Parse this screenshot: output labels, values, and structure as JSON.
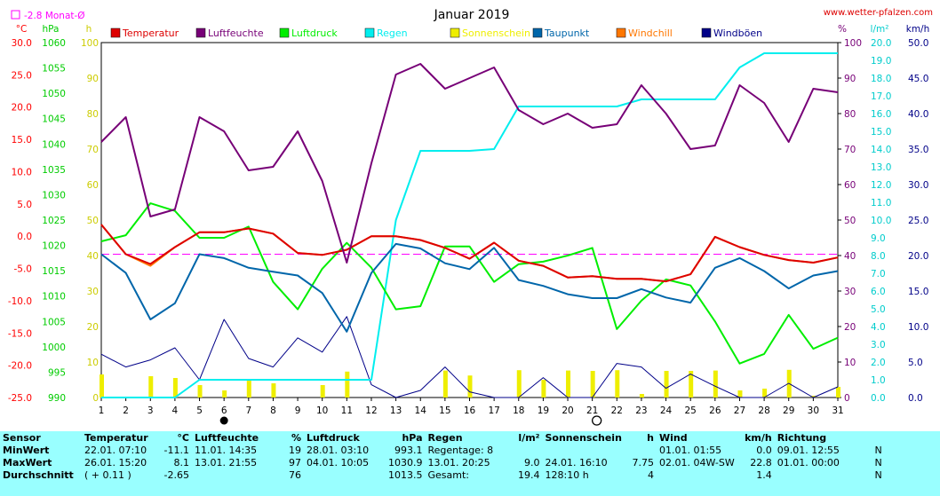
{
  "header": {
    "title": "Januar 2019",
    "url": "www.wetter-pfalzen.com",
    "month_avg_label": "-2.8 Monat-Ø",
    "units": {
      "temp": "°C",
      "pressure": "hPa",
      "sun": "h",
      "humidity": "%",
      "rain": "l/m²",
      "wind": "km/h"
    }
  },
  "colors": {
    "temperature": "#dd0000",
    "humidity": "#770077",
    "pressure": "#00ee00",
    "rain": "#00eeee",
    "sun": "#eeee00",
    "dewpoint": "#0066aa",
    "windchill": "#ff7700",
    "gusts": "#000088",
    "temp_axis": "#ff0000",
    "pressure_axis": "#00cc00",
    "sun_axis": "#cccc00",
    "hum_axis": "#770077",
    "rain_axis": "#00cccc",
    "wind_axis": "#000088",
    "avg_line": "#ff00ff"
  },
  "chart_data": {
    "type": "line",
    "title": "Januar 2019",
    "legend": [
      "Temperatur",
      "Luftfeuchte",
      "Luftdruck",
      "Regen",
      "Sonnenschein",
      "Taupunkt",
      "Windchill",
      "Windböen"
    ],
    "x": [
      1,
      2,
      3,
      4,
      5,
      6,
      7,
      8,
      9,
      10,
      11,
      12,
      13,
      14,
      15,
      16,
      17,
      18,
      19,
      20,
      21,
      22,
      23,
      24,
      25,
      26,
      27,
      28,
      29,
      30,
      31
    ],
    "axes": {
      "temp": {
        "min": -25,
        "max": 30,
        "ticks": [
          "30.0",
          "25.0",
          "20.0",
          "15.0",
          "10.0",
          "5.0",
          "0.0",
          "-5.0",
          "-10.0",
          "-15.0",
          "-20.0",
          "-25.0"
        ]
      },
      "pressure": {
        "min": 990,
        "max": 1060,
        "ticks": [
          "1060",
          "1055",
          "1050",
          "1045",
          "1040",
          "1035",
          "1030",
          "1025",
          "1020",
          "1015",
          "1010",
          "1005",
          "1000",
          "995",
          "990"
        ]
      },
      "sun": {
        "min": 0,
        "max": 100,
        "ticks": [
          "100",
          "90",
          "80",
          "70",
          "60",
          "50",
          "40",
          "30",
          "20",
          "10",
          "0"
        ]
      },
      "humidity": {
        "min": 0,
        "max": 100,
        "ticks": [
          "100",
          "90",
          "80",
          "70",
          "60",
          "50",
          "40",
          "30",
          "20",
          "10",
          "0"
        ]
      },
      "rain": {
        "min": 0,
        "max": 20,
        "ticks": [
          "20.0",
          "19.0",
          "18.0",
          "17.0",
          "16.0",
          "15.0",
          "14.0",
          "13.0",
          "12.0",
          "11.0",
          "10.0",
          "9.0",
          "8.0",
          "7.0",
          "6.0",
          "5.0",
          "4.0",
          "3.0",
          "2.0",
          "1.0",
          "0.0"
        ]
      },
      "wind": {
        "min": 0,
        "max": 50,
        "ticks": [
          "50.0",
          "45.0",
          "40.0",
          "35.0",
          "30.0",
          "25.0",
          "20.0",
          "15.0",
          "10.0",
          "5.0",
          "0.0"
        ]
      }
    },
    "series": [
      {
        "name": "Temperatur",
        "axis": "temp",
        "values": [
          1.8,
          -2.8,
          -4.3,
          -1.7,
          0.6,
          0.6,
          1.2,
          0.4,
          -2.6,
          -2.9,
          -2.1,
          0.0,
          0.0,
          -0.6,
          -1.8,
          -3.5,
          -1.0,
          -3.8,
          -4.6,
          -6.4,
          -6.2,
          -6.6,
          -6.6,
          -7.0,
          -5.9,
          -0.1,
          -1.7,
          -2.9,
          -3.7,
          -4.1,
          -3.3
        ]
      },
      {
        "name": "Luftfeuchte",
        "axis": "humidity",
        "values": [
          72,
          79,
          51,
          53,
          79,
          75,
          64,
          65,
          75,
          61,
          38,
          66,
          91,
          94,
          87,
          90,
          93,
          81,
          77,
          80,
          76,
          77,
          88,
          80,
          70,
          71,
          88,
          83,
          72,
          87,
          86
        ]
      },
      {
        "name": "Luftdruck",
        "axis": "pressure",
        "values": [
          1020.8,
          1022.0,
          1028.3,
          1026.8,
          1021.5,
          1021.5,
          1023.7,
          1012.8,
          1007.4,
          1015.4,
          1020.5,
          1015.6,
          1007.4,
          1008.0,
          1019.8,
          1019.8,
          1012.8,
          1016.3,
          1016.8,
          1018.0,
          1019.5,
          1003.5,
          1009.1,
          1013.3,
          1012.1,
          1005.0,
          996.7,
          998.6,
          1006.3,
          999.6,
          1001.8
        ]
      },
      {
        "name": "Taupunkt",
        "axis": "temp",
        "values": [
          -2.8,
          -5.7,
          -12.9,
          -10.4,
          -2.8,
          -3.4,
          -4.9,
          -5.5,
          -6.1,
          -8.8,
          -14.8,
          -5.7,
          -1.2,
          -1.9,
          -4.2,
          -5.1,
          -1.8,
          -6.8,
          -7.7,
          -9.0,
          -9.6,
          -9.6,
          -8.2,
          -9.5,
          -10.3,
          -4.9,
          -3.4,
          -5.4,
          -8.1,
          -6.1,
          -5.4
        ]
      },
      {
        "name": "Windchill",
        "axis": "temp",
        "values": [
          1.8,
          -2.8,
          -4.6,
          -1.7,
          0.6,
          0.6,
          1.2,
          0.4,
          -2.6,
          -2.9,
          -2.1,
          0.0,
          0.0,
          -0.6,
          -1.8,
          -3.5,
          -1.0,
          -3.8,
          -4.6,
          -6.4,
          -6.2,
          -6.6,
          -6.6,
          -7.0,
          -5.9,
          -0.1,
          -1.7,
          -2.9,
          -3.7,
          -4.1,
          -3.3
        ]
      },
      {
        "name": "Regen",
        "axis": "rain",
        "values": [
          0,
          0,
          0,
          0,
          1.0,
          1.0,
          1.0,
          1.0,
          1.0,
          1.0,
          1.0,
          1.0,
          10.0,
          13.9,
          13.9,
          13.9,
          14.0,
          16.4,
          16.4,
          16.4,
          16.4,
          16.4,
          16.8,
          16.8,
          16.8,
          16.8,
          18.6,
          19.4,
          19.4,
          19.4,
          19.4
        ]
      },
      {
        "name": "Windböen",
        "axis": "wind",
        "values": [
          6.1,
          4.3,
          5.3,
          7.0,
          2.5,
          11.0,
          5.5,
          4.3,
          8.4,
          6.4,
          11.4,
          1.8,
          0.0,
          1.0,
          4.3,
          0.8,
          0.0,
          0.0,
          2.8,
          0.0,
          0.0,
          4.8,
          4.3,
          1.3,
          3.3,
          1.6,
          0.0,
          0.0,
          2.0,
          0.0,
          1.5
        ]
      },
      {
        "name": "Sonnenschein",
        "axis": "sun",
        "type": "bar",
        "values": [
          6.5,
          0,
          6.0,
          5.5,
          3.5,
          2.0,
          5.0,
          4.0,
          0,
          3.5,
          7.3,
          0,
          0,
          0,
          7.6,
          6.2,
          0,
          7.7,
          5.0,
          7.6,
          7.5,
          7.7,
          1.0,
          7.5,
          7.5,
          7.6,
          2.0,
          2.5,
          7.8,
          0.5,
          3.0
        ]
      }
    ],
    "avg_line": {
      "axis": "temp",
      "value": -2.8
    },
    "markers": {
      "full_moon_day": 6,
      "new_moon_day": 21
    }
  },
  "stats": {
    "headers": [
      {
        "label": "Sensor"
      },
      {
        "label": "Temperatur",
        "unit": "°C"
      },
      {
        "label": "Luftfeuchte",
        "unit": "%"
      },
      {
        "label": "Luftdruck",
        "unit": "hPa"
      },
      {
        "label": "Regen",
        "unit": "l/m²"
      },
      {
        "label": "Sonnenschein",
        "unit": "h"
      },
      {
        "label": "Wind",
        "unit": "km/h"
      },
      {
        "label": "Richtung",
        "unit": ""
      }
    ],
    "rows": [
      {
        "label": "MinWert",
        "temp": [
          "22.01.",
          "07:10",
          "-11.1"
        ],
        "hum": [
          "11.01.",
          "14:35",
          "19"
        ],
        "pres": [
          "28.01.",
          "03:10",
          "993.1"
        ],
        "rain": [
          "Regentage: 8",
          ""
        ],
        "sun": [
          "",
          ""
        ],
        "wind": [
          "01.01.",
          "01:55",
          "0.0"
        ],
        "dir": [
          "09.01.",
          "12:55",
          "N"
        ]
      },
      {
        "label": "MaxWert",
        "temp": [
          "26.01.",
          "15:20",
          "8.1"
        ],
        "hum": [
          "13.01.",
          "21:55",
          "97"
        ],
        "pres": [
          "04.01.",
          "10:05",
          "1030.9"
        ],
        "rain": [
          "13.01.  20:25",
          "9.0"
        ],
        "sun": [
          "24.01.  16:10",
          "7.75"
        ],
        "wind": [
          "02.01.",
          "04W-SW",
          "22.8"
        ],
        "dir": [
          "01.01.",
          "00:00",
          "N"
        ]
      },
      {
        "label": "Durchschnitt",
        "temp": [
          "( + 0.11 )",
          "",
          "-2.65"
        ],
        "hum": [
          "",
          "",
          "76"
        ],
        "pres": [
          "",
          "",
          "1013.5"
        ],
        "rain": [
          "Gesamt:",
          "19.4"
        ],
        "sun": [
          "128:10 h",
          "4"
        ],
        "wind": [
          "",
          "",
          "1.4"
        ],
        "dir": [
          "",
          "",
          "N"
        ]
      }
    ]
  }
}
